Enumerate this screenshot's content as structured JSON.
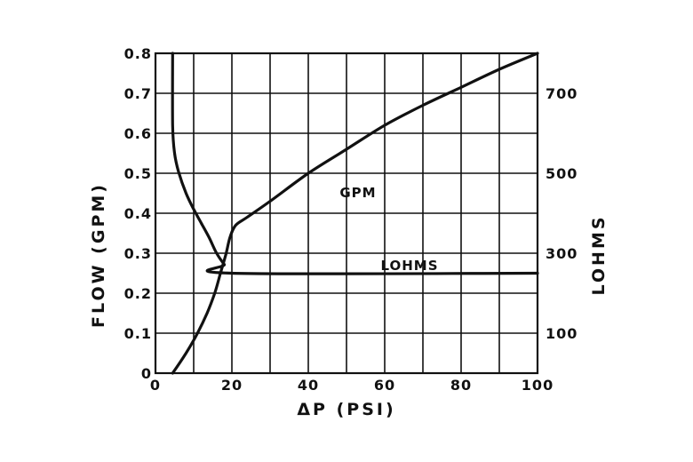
{
  "chart_data": {
    "type": "line",
    "xlabel": "ΔP (PSI)",
    "ylabel_left": "FLOW (GPM)",
    "ylabel_right": "LOHMS",
    "xlim": [
      0,
      100
    ],
    "ylim_left": [
      0,
      0.8
    ],
    "ylim_right": [
      0,
      800
    ],
    "x_ticks": [
      "0",
      "20",
      "40",
      "60",
      "80",
      "100"
    ],
    "x_tick_values": [
      0,
      20,
      40,
      60,
      80,
      100
    ],
    "y_left_ticks": [
      "0",
      "0.1",
      "0.2",
      "0.3",
      "0.4",
      "0.5",
      "0.6",
      "0.7",
      "0.8"
    ],
    "y_left_tick_values": [
      0,
      0.1,
      0.2,
      0.3,
      0.4,
      0.5,
      0.6,
      0.7,
      0.8
    ],
    "y_right_ticks": [
      "100",
      "300",
      "500",
      "700"
    ],
    "y_right_tick_values": [
      100,
      300,
      500,
      700
    ],
    "grid": true,
    "series": [
      {
        "name": "GPM",
        "axis": "left",
        "points": [
          [
            4.5,
            0
          ],
          [
            8,
            0.05
          ],
          [
            11,
            0.1
          ],
          [
            13.5,
            0.15
          ],
          [
            15.5,
            0.2
          ],
          [
            17,
            0.25
          ],
          [
            18.5,
            0.3
          ],
          [
            19.5,
            0.34
          ],
          [
            21,
            0.37
          ],
          [
            24,
            0.39
          ],
          [
            30,
            0.43
          ],
          [
            40,
            0.5
          ],
          [
            50,
            0.56
          ],
          [
            60,
            0.62
          ],
          [
            70,
            0.67
          ],
          [
            80,
            0.715
          ],
          [
            90,
            0.76
          ],
          [
            100,
            0.8
          ]
        ]
      },
      {
        "name": "LOHMS",
        "axis": "right",
        "points": [
          [
            4.5,
            800
          ],
          [
            4.5,
            620
          ],
          [
            5,
            550
          ],
          [
            6,
            505
          ],
          [
            8,
            450
          ],
          [
            10,
            410
          ],
          [
            12,
            375
          ],
          [
            14,
            340
          ],
          [
            16,
            300
          ],
          [
            18,
            272
          ],
          [
            20,
            250
          ],
          [
            100,
            250
          ]
        ]
      }
    ]
  }
}
